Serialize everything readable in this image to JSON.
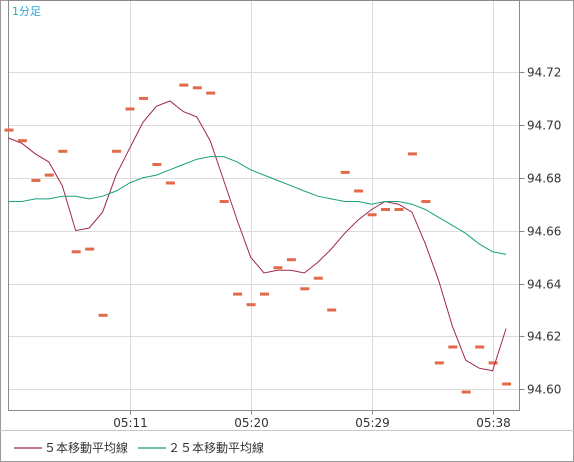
{
  "chart_data": {
    "type": "line",
    "title": "1分足",
    "y_ticks": [
      "94.72",
      "94.70",
      "94.68",
      "94.66",
      "94.64",
      "94.62",
      "94.60"
    ],
    "x_ticks": [
      "05:11",
      "05:20",
      "05:29",
      "05:38"
    ],
    "ylim": [
      94.592,
      94.747
    ],
    "xlim": [
      0,
      38
    ],
    "x_tick_positions": [
      9,
      18,
      27,
      36
    ],
    "grid": true,
    "legend_position": "bottom",
    "colors": {
      "ma5": "#a0284a",
      "ma25": "#18a080",
      "price": "#e06a4a",
      "grid": "#dcdcdc",
      "frame": "#8a8a8a"
    },
    "price_marks": [
      94.698,
      94.694,
      94.679,
      94.681,
      94.69,
      94.652,
      94.653,
      94.628,
      94.69,
      94.706,
      94.71,
      94.685,
      94.678,
      94.715,
      94.714,
      94.712,
      94.671,
      94.636,
      94.632,
      94.636,
      94.646,
      94.649,
      94.638,
      94.642,
      94.63,
      94.682,
      94.675,
      94.666,
      94.668,
      94.668,
      94.689,
      94.671,
      94.61,
      94.616,
      94.599,
      94.616,
      94.61,
      94.602
    ],
    "series": [
      {
        "name": "５本移動平均線",
        "color": "#a0284a",
        "x": [
          0,
          1,
          2,
          3,
          4,
          5,
          6,
          7,
          8,
          9,
          10,
          11,
          12,
          13,
          14,
          15,
          16,
          17,
          18,
          19,
          20,
          21,
          22,
          23,
          24,
          25,
          26,
          27,
          28,
          29,
          30,
          31,
          32,
          33,
          34,
          35,
          36,
          37
        ],
        "values": [
          94.695,
          94.693,
          94.689,
          94.686,
          94.677,
          94.66,
          94.661,
          94.667,
          94.681,
          94.691,
          94.701,
          94.707,
          94.709,
          94.705,
          94.703,
          94.694,
          94.679,
          94.664,
          94.65,
          94.644,
          94.645,
          94.645,
          94.644,
          94.648,
          94.653,
          94.659,
          94.664,
          94.668,
          94.671,
          94.67,
          94.667,
          94.655,
          94.641,
          94.624,
          94.611,
          94.608,
          94.607,
          94.623
        ]
      },
      {
        "name": "２５本移動平均線",
        "color": "#18a080",
        "x": [
          0,
          1,
          2,
          3,
          4,
          5,
          6,
          7,
          8,
          9,
          10,
          11,
          12,
          13,
          14,
          15,
          16,
          17,
          18,
          19,
          20,
          21,
          22,
          23,
          24,
          25,
          26,
          27,
          28,
          29,
          30,
          31,
          32,
          33,
          34,
          35,
          36,
          37
        ],
        "values": [
          94.671,
          94.671,
          94.672,
          94.672,
          94.673,
          94.673,
          94.672,
          94.673,
          94.675,
          94.678,
          94.68,
          94.681,
          94.683,
          94.685,
          94.687,
          94.688,
          94.688,
          94.686,
          94.683,
          94.681,
          94.679,
          94.677,
          94.675,
          94.673,
          94.672,
          94.671,
          94.671,
          94.67,
          94.671,
          94.671,
          94.67,
          94.668,
          94.665,
          94.662,
          94.659,
          94.655,
          94.652,
          94.651
        ]
      }
    ]
  }
}
